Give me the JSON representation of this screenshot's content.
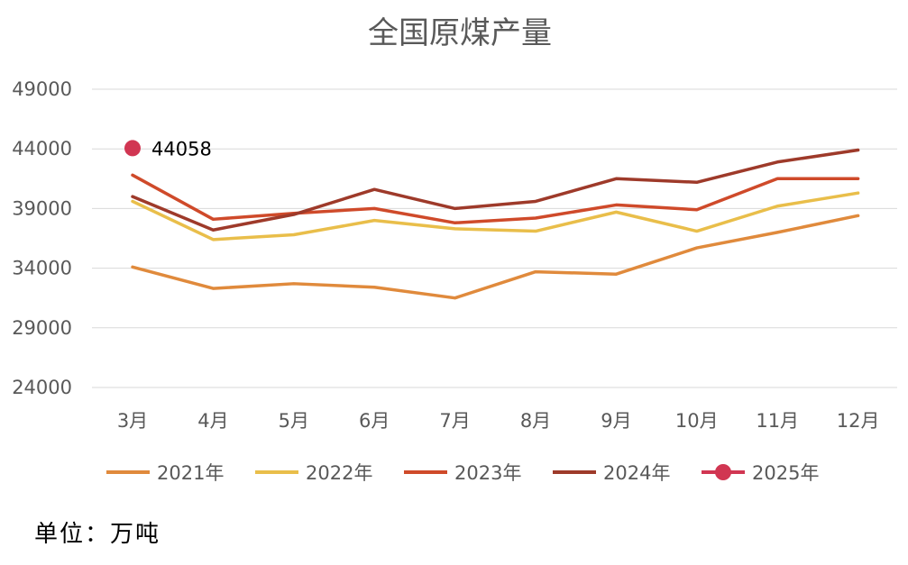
{
  "chart_data": {
    "type": "line",
    "title": "全国原煤产量",
    "categories": [
      "3月",
      "4月",
      "5月",
      "6月",
      "7月",
      "8月",
      "9月",
      "10月",
      "11月",
      "12月"
    ],
    "yticks": [
      24000,
      29000,
      34000,
      39000,
      44000,
      49000
    ],
    "ylim": [
      24000,
      49000
    ],
    "grid": true,
    "legend_position": "bottom",
    "series": [
      {
        "name": "2021年",
        "color": "#e08a3c",
        "values": [
          34100,
          32300,
          32700,
          32400,
          31500,
          33700,
          33500,
          35700,
          37000,
          38400
        ]
      },
      {
        "name": "2022年",
        "color": "#e9be4a",
        "values": [
          39600,
          36400,
          36800,
          38000,
          37300,
          37100,
          38700,
          37100,
          39200,
          40300
        ]
      },
      {
        "name": "2023年",
        "color": "#cf4a2a",
        "values": [
          41800,
          38100,
          38600,
          39000,
          37800,
          38200,
          39300,
          38900,
          41500,
          41500
        ]
      },
      {
        "name": "2024年",
        "color": "#9e3a2a",
        "values": [
          40000,
          37200,
          38500,
          40600,
          39000,
          39600,
          41500,
          41200,
          42900,
          43900
        ]
      },
      {
        "name": "2025年",
        "color": "#d13652",
        "values": [
          44058,
          null,
          null,
          null,
          null,
          null,
          null,
          null,
          null,
          null
        ],
        "data_label": "44058"
      }
    ]
  },
  "footer": {
    "unit_label": "单位：万吨"
  }
}
